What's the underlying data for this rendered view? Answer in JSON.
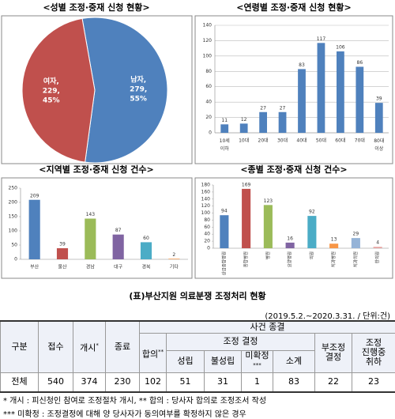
{
  "chart_data": [
    {
      "type": "pie",
      "title": "<성별 조정·중재 신청 현황>",
      "categories": [
        "남자,",
        "여자,"
      ],
      "values": [
        279,
        229
      ],
      "value_labels": [
        "279,",
        "229,"
      ],
      "percent_labels": [
        "55%",
        "45%"
      ],
      "colors": [
        "#4f81bd",
        "#c0504d"
      ]
    },
    {
      "type": "bar",
      "title": "<연령별 조정·중재 신청 현황>",
      "categories": [
        "10세\n이하",
        "10대",
        "20대",
        "30대",
        "40대",
        "50대",
        "60대",
        "70대",
        "80대\n이상"
      ],
      "values": [
        11,
        12,
        27,
        27,
        83,
        117,
        106,
        86,
        39
      ],
      "color": "#4f81bd",
      "ylim": [
        0,
        140
      ],
      "yticks": [
        0,
        20,
        40,
        60,
        80,
        100,
        120,
        140
      ],
      "grid": true,
      "rotate_labels": false
    },
    {
      "type": "bar",
      "title": "<지역별 조정·중재 신청 건수>",
      "categories": [
        "부산",
        "울산",
        "경남",
        "대구",
        "경북",
        "기타"
      ],
      "values": [
        209,
        39,
        143,
        87,
        60,
        2
      ],
      "colors": [
        "#4f81bd",
        "#c0504d",
        "#9bbb59",
        "#8064a2",
        "#4bacc6",
        "#f79646"
      ],
      "ylim": [
        0,
        250
      ],
      "yticks": [
        0,
        50,
        100,
        150,
        200,
        250
      ],
      "grid": false,
      "rotate_labels": false
    },
    {
      "type": "bar",
      "title": "<종별 조정·중재 신청 건수>",
      "categories": [
        "상급종합병원",
        "종합병원",
        "병원",
        "요양병원",
        "의원",
        "치과병원",
        "치과의원",
        "한의원"
      ],
      "values": [
        94,
        169,
        123,
        16,
        92,
        13,
        29,
        4
      ],
      "colors": [
        "#4f81bd",
        "#c0504d",
        "#9bbb59",
        "#8064a2",
        "#4bacc6",
        "#f79646",
        "#95b3d7",
        "#e6a3a1"
      ],
      "ylim": [
        0,
        180
      ],
      "yticks": [
        0,
        20,
        40,
        60,
        80,
        100,
        120,
        140,
        160,
        180
      ],
      "grid": false,
      "rotate_labels": true
    }
  ],
  "table": {
    "title": "(표)부산지원 의료분쟁 조정처리 현황",
    "note": "(2019.5.2.~2020.3.31. / 단위:건)",
    "headers": {
      "division": "구분",
      "received": "접수",
      "started": "개시",
      "started_sup": "*",
      "ended": "종료",
      "closed": "사건 종결",
      "agreement": "합의",
      "agreement_sup": "**",
      "decision": "조정 결정",
      "established": "성립",
      "not_established": "불성립",
      "undetermined": "미확정",
      "undetermined_sup": "***",
      "subtotal": "소계",
      "non_decision": "부조정 결정",
      "withdrawn": "조정 진행중 취하"
    },
    "rows": [
      [
        "전체",
        540,
        374,
        230,
        102,
        51,
        31,
        1,
        83,
        22,
        23
      ]
    ]
  },
  "footnotes": [
    "* 개시 : 피신청인 참여로 조정절차 개시, ** 합의 : 당사자 합의로 조정조서 작성",
    "*** 미확정 : 조정결정에 대해 양 당사자가 동의여부를 확정하지 않은 경우"
  ]
}
